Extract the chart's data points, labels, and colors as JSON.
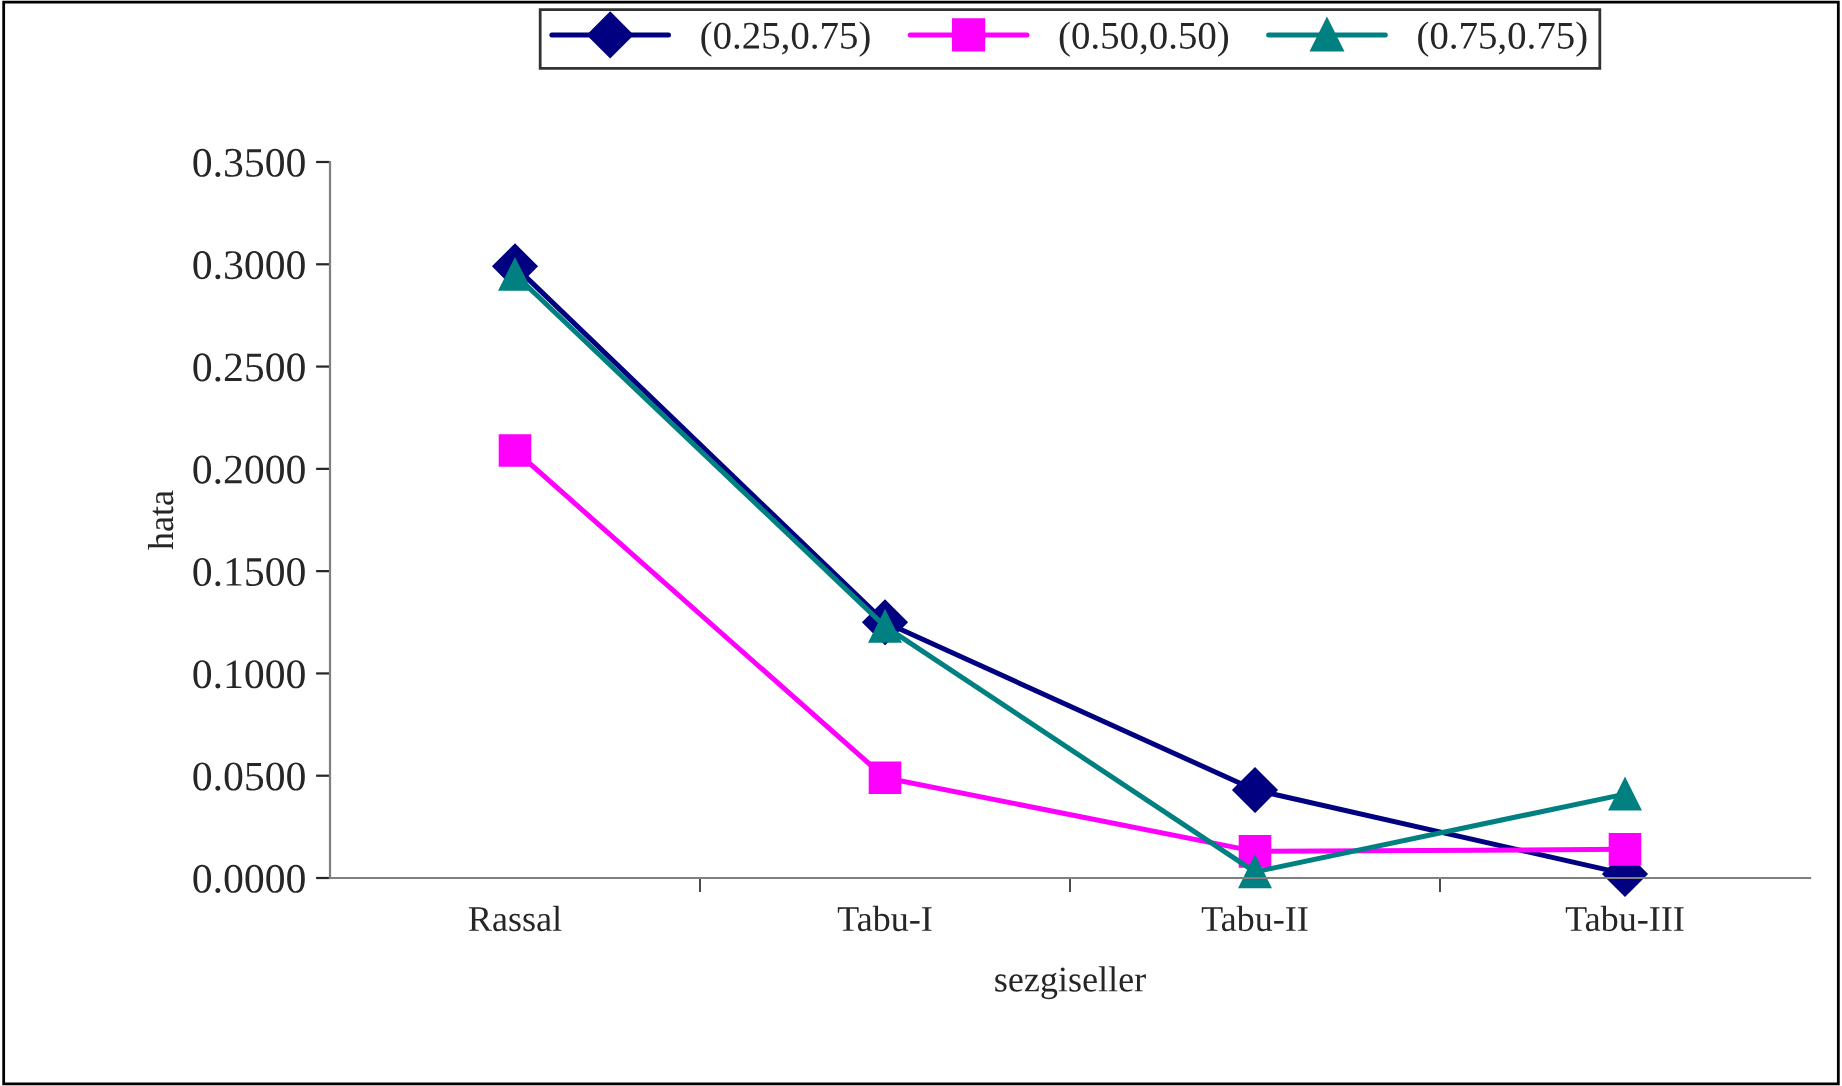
{
  "chart_data": {
    "type": "line",
    "xlabel": "sezgiseller",
    "ylabel": "hata",
    "categories": [
      "Rassal",
      "Tabu-I",
      "Tabu-II",
      "Tabu-III"
    ],
    "series": [
      {
        "name": "(0.25,0.75)",
        "color": "#000080",
        "marker": "diamond",
        "values": [
          0.299,
          0.125,
          0.043,
          0.002
        ]
      },
      {
        "name": "(0.50,0.50)",
        "color": "#ff00ff",
        "marker": "square",
        "values": [
          0.209,
          0.049,
          0.013,
          0.014
        ]
      },
      {
        "name": "(0.75,0.75)",
        "color": "#008080",
        "marker": "triangle",
        "values": [
          0.295,
          0.123,
          0.003,
          0.041
        ]
      }
    ],
    "ylim": [
      0,
      0.35
    ],
    "yticks": [
      {
        "value": 0,
        "label": "0.0000"
      },
      {
        "value": 0.05,
        "label": "0.0500"
      },
      {
        "value": 0.1,
        "label": "0.1000"
      },
      {
        "value": 0.15,
        "label": "0.1500"
      },
      {
        "value": 0.2,
        "label": "0.2000"
      },
      {
        "value": 0.25,
        "label": "0.2500"
      },
      {
        "value": 0.3,
        "label": "0.3000"
      },
      {
        "value": 0.35,
        "label": "0.3500"
      }
    ],
    "grid": false,
    "legend": "top",
    "line_style": "solid"
  }
}
